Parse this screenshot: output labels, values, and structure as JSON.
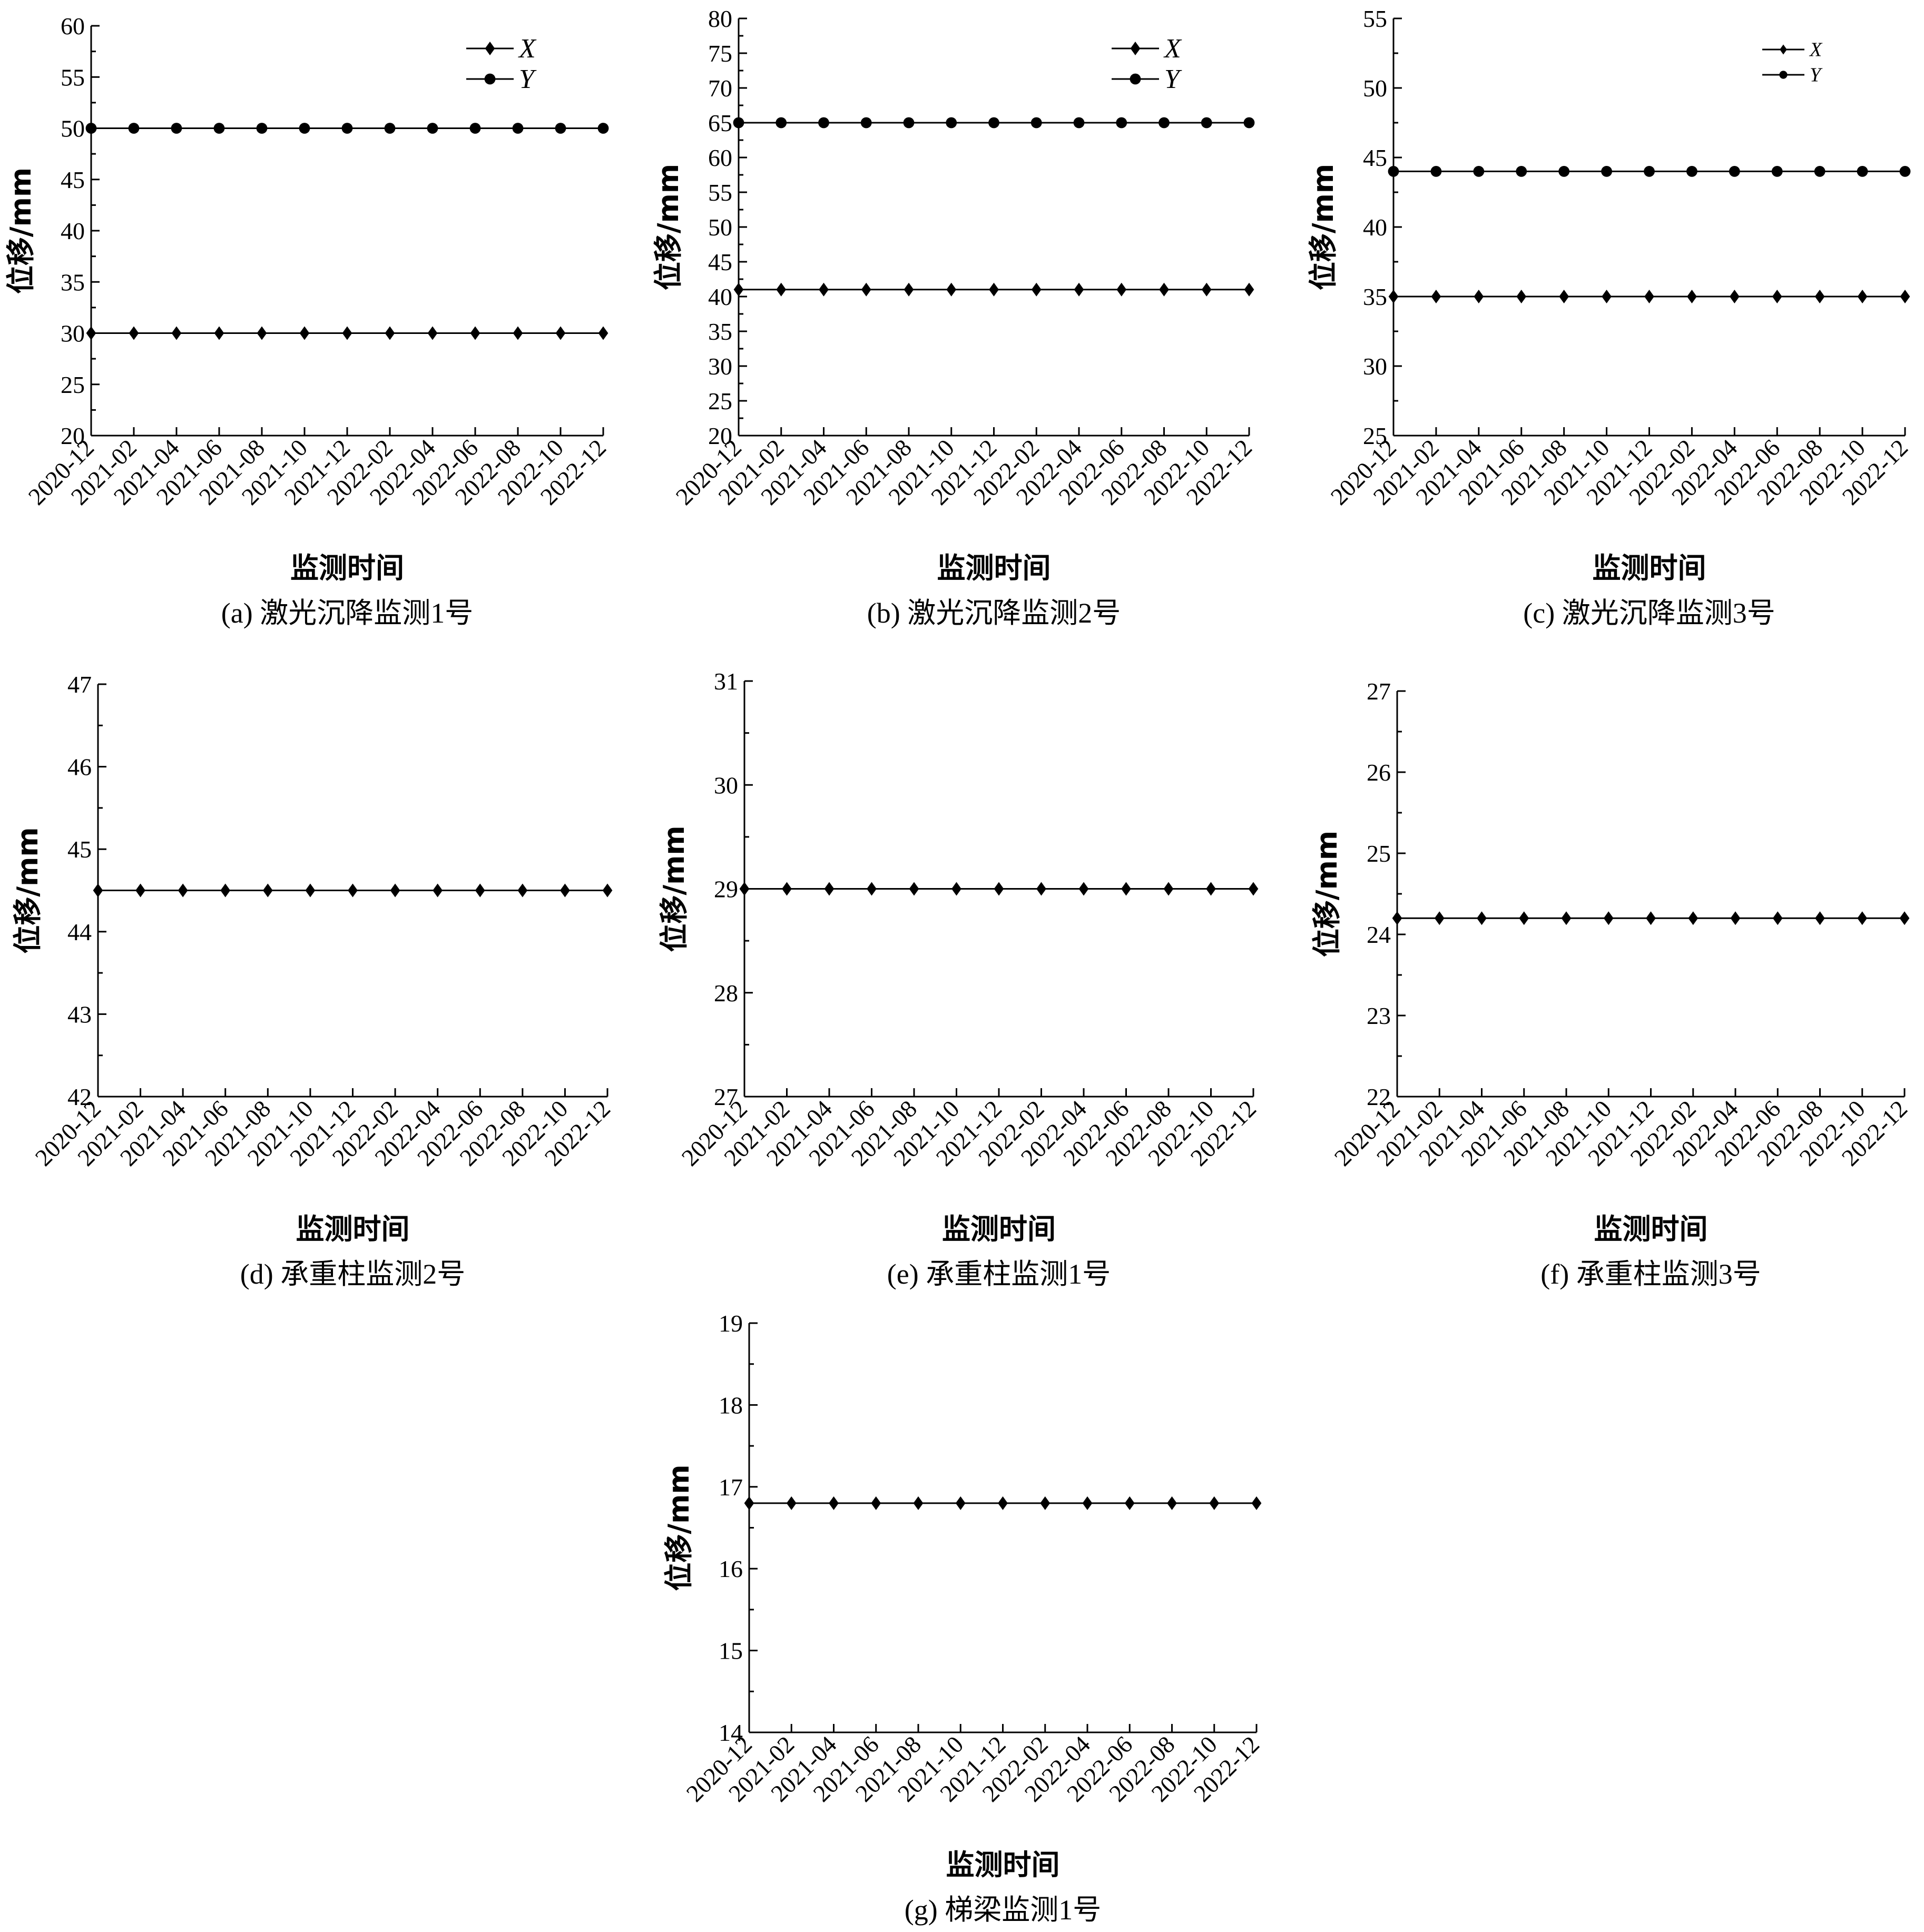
{
  "chart_data": [
    {
      "type": "line",
      "caption": "(a) 激光沉降监测1号",
      "xlabel": "监测时间",
      "ylabel": "位移/mm",
      "categories": [
        "2020-12",
        "2021-02",
        "2021-04",
        "2021-06",
        "2021-08",
        "2021-10",
        "2021-12",
        "2022-02",
        "2022-04",
        "2022-06",
        "2022-08",
        "2022-10",
        "2022-12"
      ],
      "ylim": [
        20,
        60
      ],
      "yticks": [
        20,
        25,
        30,
        35,
        40,
        45,
        50,
        55,
        60
      ],
      "legend": "top-right",
      "series": [
        {
          "name": "X",
          "marker": "diamond",
          "values": [
            30,
            30,
            30,
            30,
            30,
            30,
            30,
            30,
            30,
            30,
            30,
            30,
            30
          ]
        },
        {
          "name": "Y",
          "marker": "circle",
          "values": [
            50,
            50,
            50,
            50,
            50,
            50,
            50,
            50,
            50,
            50,
            50,
            50,
            50
          ]
        }
      ]
    },
    {
      "type": "line",
      "caption": "(b) 激光沉降监测2号",
      "xlabel": "监测时间",
      "ylabel": "位移/mm",
      "categories": [
        "2020-12",
        "2021-02",
        "2021-04",
        "2021-06",
        "2021-08",
        "2021-10",
        "2021-12",
        "2022-02",
        "2022-04",
        "2022-06",
        "2022-08",
        "2022-10",
        "2022-12"
      ],
      "ylim": [
        20,
        80
      ],
      "yticks": [
        20,
        25,
        30,
        35,
        40,
        45,
        50,
        55,
        60,
        65,
        70,
        75,
        80
      ],
      "legend": "top-right",
      "series": [
        {
          "name": "X",
          "marker": "diamond",
          "values": [
            41,
            41,
            41,
            41,
            41,
            41,
            41,
            41,
            41,
            41,
            41,
            41,
            41
          ]
        },
        {
          "name": "Y",
          "marker": "circle",
          "values": [
            65,
            65,
            65,
            65,
            65,
            65,
            65,
            65,
            65,
            65,
            65,
            65,
            65
          ]
        }
      ]
    },
    {
      "type": "line",
      "caption": "(c) 激光沉降监测3号",
      "xlabel": "监测时间",
      "ylabel": "位移/mm",
      "categories": [
        "2020-12",
        "2021-02",
        "2021-04",
        "2021-06",
        "2021-08",
        "2021-10",
        "2021-12",
        "2022-02",
        "2022-04",
        "2022-06",
        "2022-08",
        "2022-10",
        "2022-12"
      ],
      "ylim": [
        25,
        55
      ],
      "yticks": [
        25,
        30,
        35,
        40,
        45,
        50,
        55
      ],
      "legend": "top-right",
      "series": [
        {
          "name": "X",
          "marker": "diamond",
          "values": [
            35,
            35,
            35,
            35,
            35,
            35,
            35,
            35,
            35,
            35,
            35,
            35,
            35
          ]
        },
        {
          "name": "Y",
          "marker": "circle",
          "values": [
            44,
            44,
            44,
            44,
            44,
            44,
            44,
            44,
            44,
            44,
            44,
            44,
            44
          ]
        }
      ]
    },
    {
      "type": "line",
      "caption": "(d) 承重柱监测2号",
      "xlabel": "监测时间",
      "ylabel": "位移/mm",
      "categories": [
        "2020-12",
        "2021-02",
        "2021-04",
        "2021-06",
        "2021-08",
        "2021-10",
        "2021-12",
        "2022-02",
        "2022-04",
        "2022-06",
        "2022-08",
        "2022-10",
        "2022-12"
      ],
      "ylim": [
        42,
        47
      ],
      "yticks": [
        42,
        43,
        44,
        45,
        46,
        47
      ],
      "series": [
        {
          "marker": "diamond",
          "values": [
            44.5,
            44.5,
            44.5,
            44.5,
            44.5,
            44.5,
            44.5,
            44.5,
            44.5,
            44.5,
            44.5,
            44.5,
            44.5
          ]
        }
      ]
    },
    {
      "type": "line",
      "caption": "(e) 承重柱监测1号",
      "xlabel": "监测时间",
      "ylabel": "位移/mm",
      "categories": [
        "2020-12",
        "2021-02",
        "2021-04",
        "2021-06",
        "2021-08",
        "2021-10",
        "2021-12",
        "2022-02",
        "2022-04",
        "2022-06",
        "2022-08",
        "2022-10",
        "2022-12"
      ],
      "ylim": [
        27,
        31
      ],
      "yticks": [
        27,
        28,
        29,
        30,
        31
      ],
      "series": [
        {
          "marker": "diamond",
          "values": [
            29,
            29,
            29,
            29,
            29,
            29,
            29,
            29,
            29,
            29,
            29,
            29,
            29
          ]
        }
      ]
    },
    {
      "type": "line",
      "caption": "(f) 承重柱监测3号",
      "xlabel": "监测时间",
      "ylabel": "位移/mm",
      "categories": [
        "2020-12",
        "2021-02",
        "2021-04",
        "2021-06",
        "2021-08",
        "2021-10",
        "2021-12",
        "2022-02",
        "2022-04",
        "2022-06",
        "2022-08",
        "2022-10",
        "2022-12"
      ],
      "ylim": [
        22,
        27
      ],
      "yticks": [
        22,
        23,
        24,
        25,
        26,
        27
      ],
      "series": [
        {
          "marker": "diamond",
          "values": [
            24.2,
            24.2,
            24.2,
            24.2,
            24.2,
            24.2,
            24.2,
            24.2,
            24.2,
            24.2,
            24.2,
            24.2,
            24.2
          ]
        }
      ]
    },
    {
      "type": "line",
      "caption": "(g) 梯梁监测1号",
      "xlabel": "监测时间",
      "ylabel": "位移/mm",
      "categories": [
        "2020-12",
        "2021-02",
        "2021-04",
        "2021-06",
        "2021-08",
        "2021-10",
        "2021-12",
        "2022-02",
        "2022-04",
        "2022-06",
        "2022-08",
        "2022-10",
        "2022-12"
      ],
      "ylim": [
        14,
        19
      ],
      "yticks": [
        14,
        15,
        16,
        17,
        18,
        19
      ],
      "series": [
        {
          "marker": "diamond",
          "values": [
            16.8,
            16.8,
            16.8,
            16.8,
            16.8,
            16.8,
            16.8,
            16.8,
            16.8,
            16.8,
            16.8,
            16.8,
            16.8
          ]
        }
      ]
    }
  ]
}
